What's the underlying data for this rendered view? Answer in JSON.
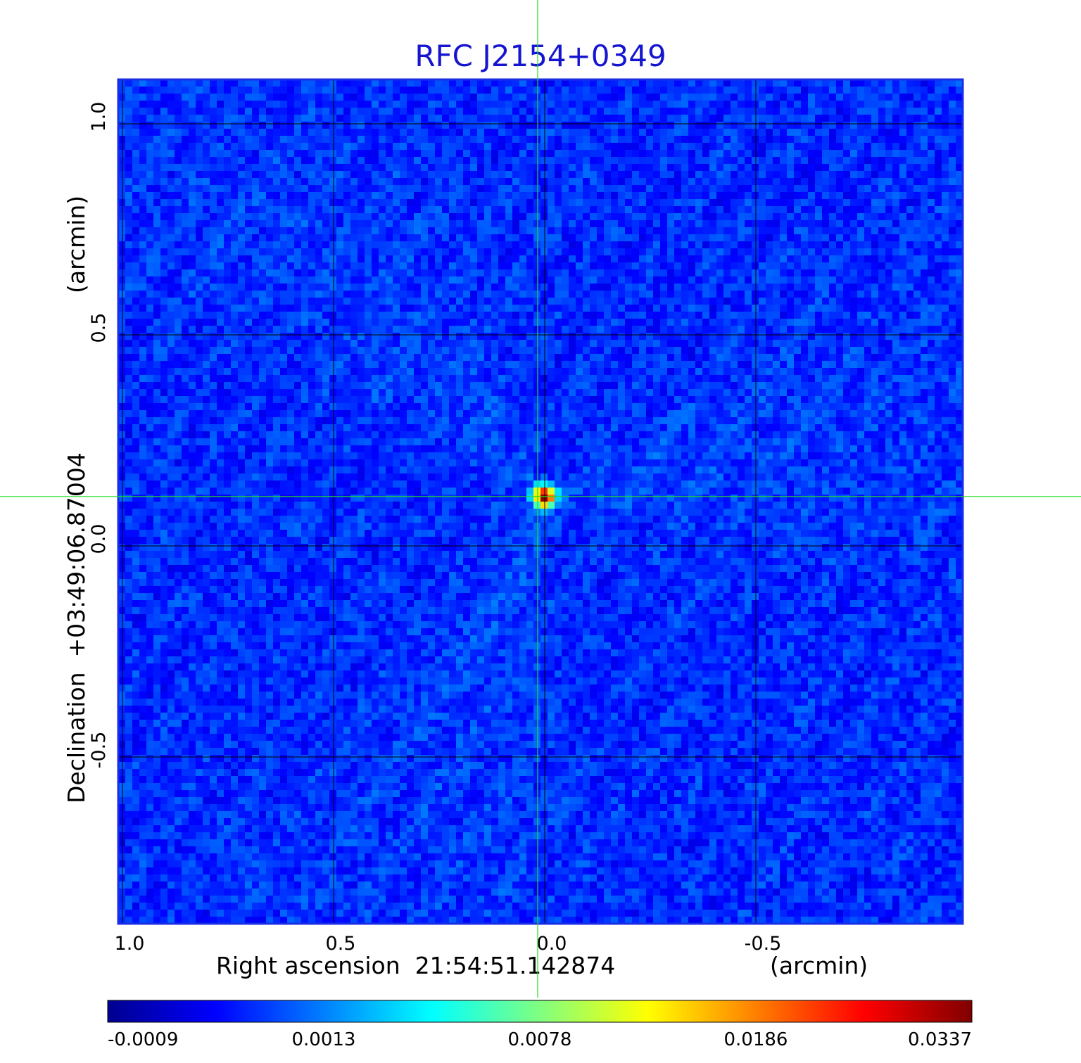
{
  "chart_data": {
    "type": "heatmap",
    "title": "RFC J2154+0349",
    "xlabel": "Right ascension  21:54:51.142874",
    "xunit": "(arcmin)",
    "ylabel": "Declination  +03:49:06.87004",
    "yunit": "(arcmin)",
    "x_ticks": [
      1.0,
      0.5,
      0.0,
      -0.5
    ],
    "x_tick_labels": [
      "1.0",
      "0.5",
      "0.0",
      "-0.5"
    ],
    "y_ticks": [
      1.0,
      0.5,
      0.0,
      -0.5
    ],
    "y_tick_labels": [
      "1.0",
      "0.5",
      "0.0",
      "-0.5"
    ],
    "xlim": [
      1.01,
      -0.99
    ],
    "ylim": [
      -0.895,
      1.105
    ],
    "grid": true,
    "colormap": "jet",
    "colorbar": {
      "ticks": [
        -0.0009,
        0.0013,
        0.0078,
        0.0186,
        0.0337
      ],
      "tick_labels": [
        "-0.0009",
        "0.0013",
        "0.0078",
        "0.0186",
        "0.0337"
      ]
    },
    "peak": {
      "x": 0.0,
      "y": 0.117,
      "value": 0.0337
    },
    "crosshair": {
      "x": 0.0,
      "y": 0.117,
      "color": "#22dd22"
    },
    "background_level": -0.0002
  },
  "colors": {
    "title": "#1515d0",
    "frame": "#1a2ee6",
    "grid": "#000000",
    "crosshair": "#22dd22"
  }
}
